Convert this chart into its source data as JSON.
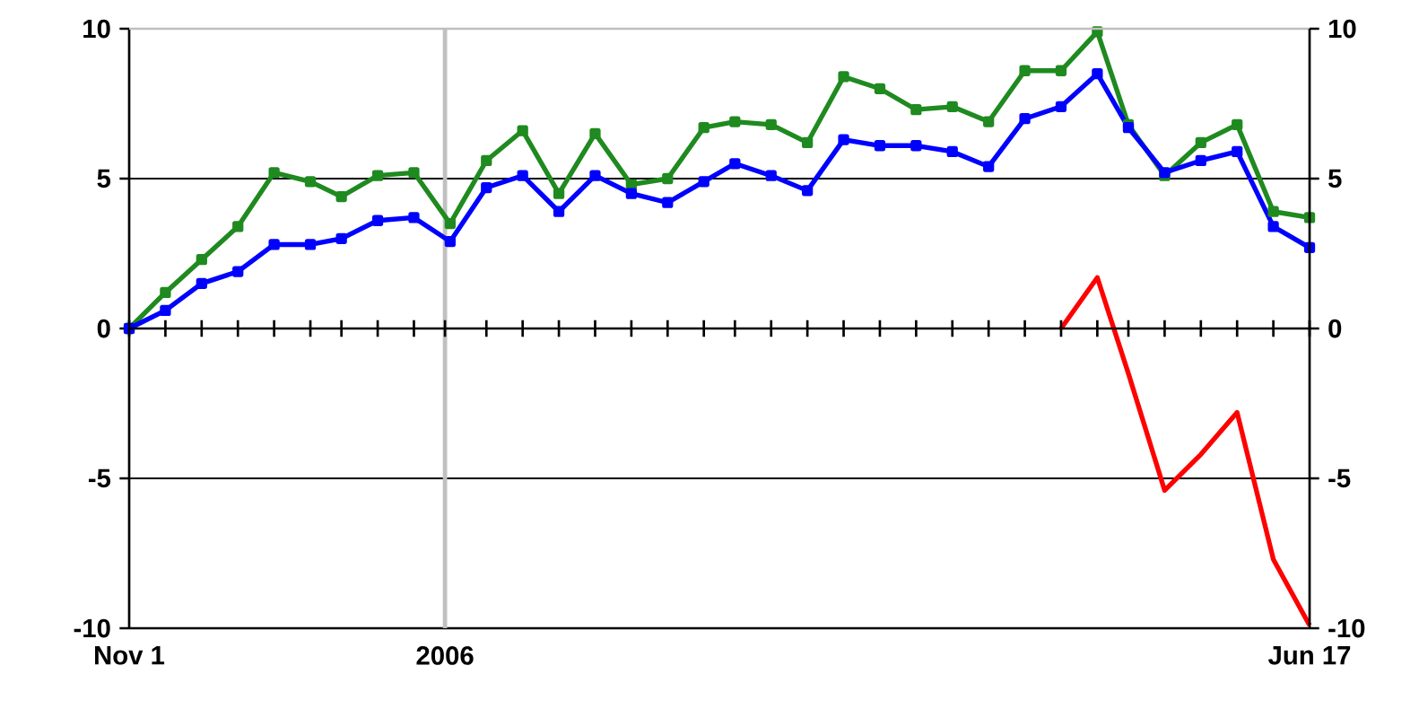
{
  "chart_data": {
    "type": "line",
    "x": [
      "2005-11-01",
      "2005-11-08",
      "2005-11-15",
      "2005-11-22",
      "2005-11-29",
      "2005-12-06",
      "2005-12-12",
      "2005-12-19",
      "2005-12-26",
      "2006-01-02",
      "2006-01-09",
      "2006-01-16",
      "2006-01-23",
      "2006-01-30",
      "2006-02-06",
      "2006-02-13",
      "2006-02-20",
      "2006-02-26",
      "2006-03-05",
      "2006-03-12",
      "2006-03-19",
      "2006-03-26",
      "2006-04-02",
      "2006-04-09",
      "2006-04-16",
      "2006-04-23",
      "2006-04-30",
      "2006-05-07",
      "2006-05-13",
      "2006-05-20",
      "2006-05-27",
      "2006-06-03",
      "2006-06-10",
      "2006-06-17"
    ],
    "series": [
      {
        "color": "#1f8a1f",
        "values": [
          0,
          1.2,
          2.3,
          3.4,
          5.2,
          4.9,
          4.4,
          5.1,
          5.2,
          3.5,
          5.6,
          6.6,
          4.5,
          6.5,
          4.8,
          5.0,
          6.7,
          6.9,
          6.8,
          6.2,
          8.4,
          8.0,
          7.3,
          7.4,
          6.9,
          8.6,
          8.6,
          9.9,
          6.8,
          5.1,
          6.2,
          6.8,
          3.9,
          3.7
        ]
      },
      {
        "color": "#0000ff",
        "values": [
          0,
          0.6,
          1.5,
          1.9,
          2.8,
          2.8,
          3.0,
          3.6,
          3.7,
          2.9,
          4.7,
          5.1,
          3.9,
          5.1,
          4.5,
          4.2,
          4.9,
          5.5,
          5.1,
          4.6,
          6.3,
          6.1,
          6.1,
          5.9,
          5.4,
          7.0,
          7.4,
          8.5,
          6.7,
          5.2,
          5.6,
          5.9,
          3.4,
          2.7
        ]
      },
      {
        "color": "#ff0000",
        "marker": "none",
        "values": [
          null,
          null,
          null,
          null,
          null,
          null,
          null,
          null,
          null,
          null,
          null,
          null,
          null,
          null,
          null,
          null,
          null,
          null,
          null,
          null,
          null,
          null,
          null,
          null,
          null,
          null,
          0,
          1.7,
          -1.5,
          -5.4,
          -4.2,
          -2.8,
          -7.7,
          -9.9
        ]
      }
    ],
    "xlim": [
      "2005-11-01",
      "2006-06-17"
    ],
    "xticks": [
      {
        "value": "2005-11-01",
        "label": "Nov 1"
      },
      {
        "value": "2005-11-08",
        "label": null
      },
      {
        "value": "2005-11-15",
        "label": null
      },
      {
        "value": "2005-11-22",
        "label": null
      },
      {
        "value": "2005-11-29",
        "label": null
      },
      {
        "value": "2005-12-06",
        "label": null
      },
      {
        "value": "2005-12-12",
        "label": null
      },
      {
        "value": "2005-12-19",
        "label": null
      },
      {
        "value": "2005-12-26",
        "label": null
      },
      {
        "value": "2006-01-01",
        "label": "2006"
      },
      {
        "value": "2006-01-09",
        "label": null
      },
      {
        "value": "2006-01-16",
        "label": null
      },
      {
        "value": "2006-01-23",
        "label": null
      },
      {
        "value": "2006-01-30",
        "label": null
      },
      {
        "value": "2006-02-06",
        "label": null
      },
      {
        "value": "2006-02-13",
        "label": null
      },
      {
        "value": "2006-02-20",
        "label": null
      },
      {
        "value": "2006-02-26",
        "label": null
      },
      {
        "value": "2006-03-05",
        "label": null
      },
      {
        "value": "2006-03-12",
        "label": null
      },
      {
        "value": "2006-03-19",
        "label": null
      },
      {
        "value": "2006-03-26",
        "label": null
      },
      {
        "value": "2006-04-02",
        "label": null
      },
      {
        "value": "2006-04-09",
        "label": null
      },
      {
        "value": "2006-04-16",
        "label": null
      },
      {
        "value": "2006-04-23",
        "label": null
      },
      {
        "value": "2006-04-30",
        "label": null
      },
      {
        "value": "2006-05-07",
        "label": null
      },
      {
        "value": "2006-05-13",
        "label": null
      },
      {
        "value": "2006-05-20",
        "label": null
      },
      {
        "value": "2006-05-27",
        "label": null
      },
      {
        "value": "2006-06-03",
        "label": null
      },
      {
        "value": "2006-06-10",
        "label": null
      },
      {
        "value": "2006-06-17",
        "label": "Jun 17"
      }
    ],
    "ylim": [
      -10,
      10
    ],
    "yticks": [
      10,
      5,
      0,
      -5,
      -10
    ],
    "y2lim": [
      -10,
      10
    ],
    "y2ticks": [
      10,
      5,
      0,
      -5,
      -10
    ],
    "grid": "y",
    "marker": "square",
    "ref_lines": [
      {
        "axis": "x",
        "value": "2006-01-01",
        "color": "#c0c0c0"
      }
    ]
  }
}
